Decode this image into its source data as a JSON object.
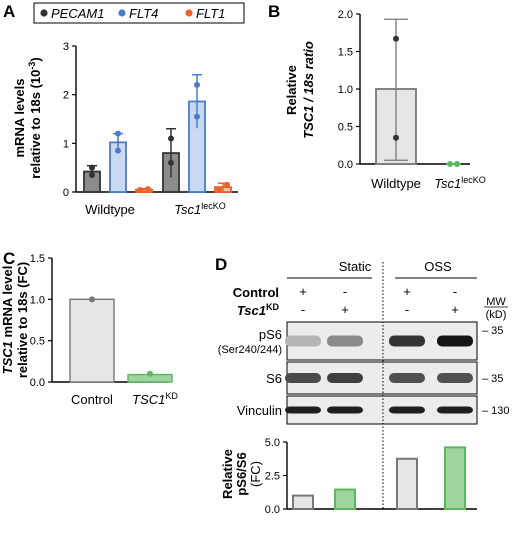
{
  "panels": {
    "A": {
      "letter": "A",
      "ylabel_line1": "mRNA levels",
      "ylabel_line2": "relative to 18s (10",
      "ylabel_exp": "-3",
      "ylabel_close": ")",
      "legend": [
        "PECAM1",
        "FLT4",
        "FLT1"
      ],
      "colors": {
        "PECAM1": "#333333",
        "FLT4": "#4A7CC7",
        "FLT1": "#E8622A"
      },
      "fills": {
        "PECAM1": "#8C8C8C",
        "FLT4": "#C9D9F1",
        "FLT1": "#F7C9B0"
      },
      "groups": [
        {
          "label": "Wildtype",
          "label_sup": ""
        },
        {
          "label": "Tsc1",
          "label_sup": "lecKO"
        }
      ]
    },
    "B": {
      "letter": "B",
      "ylabel_line1": "Relative",
      "ylabel_line2": "TSC1 / 18s ratio",
      "categories": [
        {
          "label": "Wildtype",
          "sup": "",
          "color": "#000000"
        },
        {
          "label": "Tsc1",
          "sup": "lecKO",
          "color": "#3E9B3E"
        }
      ],
      "colors": {
        "wt_edge": "#777777",
        "wt_fill": "#E6E6E6",
        "ko": "#5DB85D"
      }
    },
    "C": {
      "letter": "C",
      "ylabel_line1_it": "TSC1",
      "ylabel_line1_rest": " mRNA level",
      "ylabel_line2": "relative to 18s (FC)",
      "categories": [
        {
          "label": "Control",
          "sup": ""
        },
        {
          "label": "TSC1",
          "sup": "KD"
        }
      ],
      "colors": {
        "ctrl_fill": "#E6E6E6",
        "ctrl_edge": "#777777",
        "kd_fill": "#9FD4A0",
        "kd_edge": "#5DB85D"
      }
    },
    "D": {
      "letter": "D",
      "static_label": "Static",
      "oss_label": "OSS",
      "control_label": "Control",
      "tsc1_label": "Tsc1",
      "tsc1_sup": "KD",
      "control_signs": [
        "+",
        "-",
        "+",
        "-"
      ],
      "tsc1_signs": [
        "-",
        "+",
        "-",
        "+"
      ],
      "mw_label": "MW",
      "kd_label": "(kD)",
      "blots": [
        {
          "name": "pS6",
          "sub": "(Ser240/244)",
          "mw": "– 35"
        },
        {
          "name": "S6",
          "sub": "",
          "mw": "– 35"
        },
        {
          "name": "Vinculin",
          "sub": "",
          "mw": "– 130"
        }
      ],
      "ylabel_line1": "Relative",
      "ylabel_line2": "pS6/S6",
      "ylabel_line3": "(FC)",
      "colors": {
        "grey_fill": "#E6E6E6",
        "grey_edge": "#777777",
        "green_fill": "#9FD4A0",
        "green_edge": "#5DB85D"
      }
    }
  },
  "chart_data": [
    {
      "panel": "A",
      "type": "bar",
      "categories": [
        "Wildtype",
        "Tsc1 lecKO"
      ],
      "ylim": [
        0,
        3
      ],
      "yticks": [
        0,
        1,
        2,
        3
      ],
      "series": [
        {
          "name": "PECAM1",
          "values": [
            0.42,
            0.8
          ],
          "err": [
            0.12,
            0.5
          ],
          "points": [
            [
              0.35,
              0.5
            ],
            [
              0.6,
              1.1
            ]
          ]
        },
        {
          "name": "FLT4",
          "values": [
            1.02,
            1.86
          ],
          "err": [
            0.18,
            0.55
          ],
          "points": [
            [
              0.85,
              1.2
            ],
            [
              1.55,
              2.2
            ]
          ]
        },
        {
          "name": "FLT1",
          "values": [
            0.05,
            0.1
          ],
          "err": [
            0.02,
            0.08
          ],
          "points": [
            [
              0.04,
              0.06
            ],
            [
              0.05,
              0.15
            ]
          ]
        }
      ]
    },
    {
      "panel": "B",
      "type": "bar",
      "categories": [
        "Wildtype",
        "Tsc1 lecKO"
      ],
      "ylim": [
        0,
        2.0
      ],
      "yticks": [
        0.0,
        0.5,
        1.0,
        1.5,
        2.0
      ],
      "values": [
        1.0,
        0.0
      ],
      "err": [
        [
          0.05,
          1.93
        ],
        [
          0,
          0
        ]
      ],
      "points": [
        [
          1.67,
          0.35
        ],
        [
          0.0,
          0.0
        ]
      ]
    },
    {
      "panel": "C",
      "type": "bar",
      "categories": [
        "Control",
        "TSC1 KD"
      ],
      "ylim": [
        0,
        1.5
      ],
      "yticks": [
        0.0,
        0.5,
        1.0,
        1.5
      ],
      "values": [
        1.0,
        0.09
      ],
      "points": [
        [
          1.0
        ],
        [
          0.1
        ]
      ]
    },
    {
      "panel": "D",
      "type": "bar",
      "categories": [
        "Static Control",
        "Static Tsc1 KD",
        "OSS Control",
        "OSS Tsc1 KD"
      ],
      "ylim": [
        0,
        5.0
      ],
      "yticks": [
        0.0,
        2.5,
        5.0
      ],
      "values": [
        1.0,
        1.45,
        3.75,
        4.6
      ]
    }
  ]
}
